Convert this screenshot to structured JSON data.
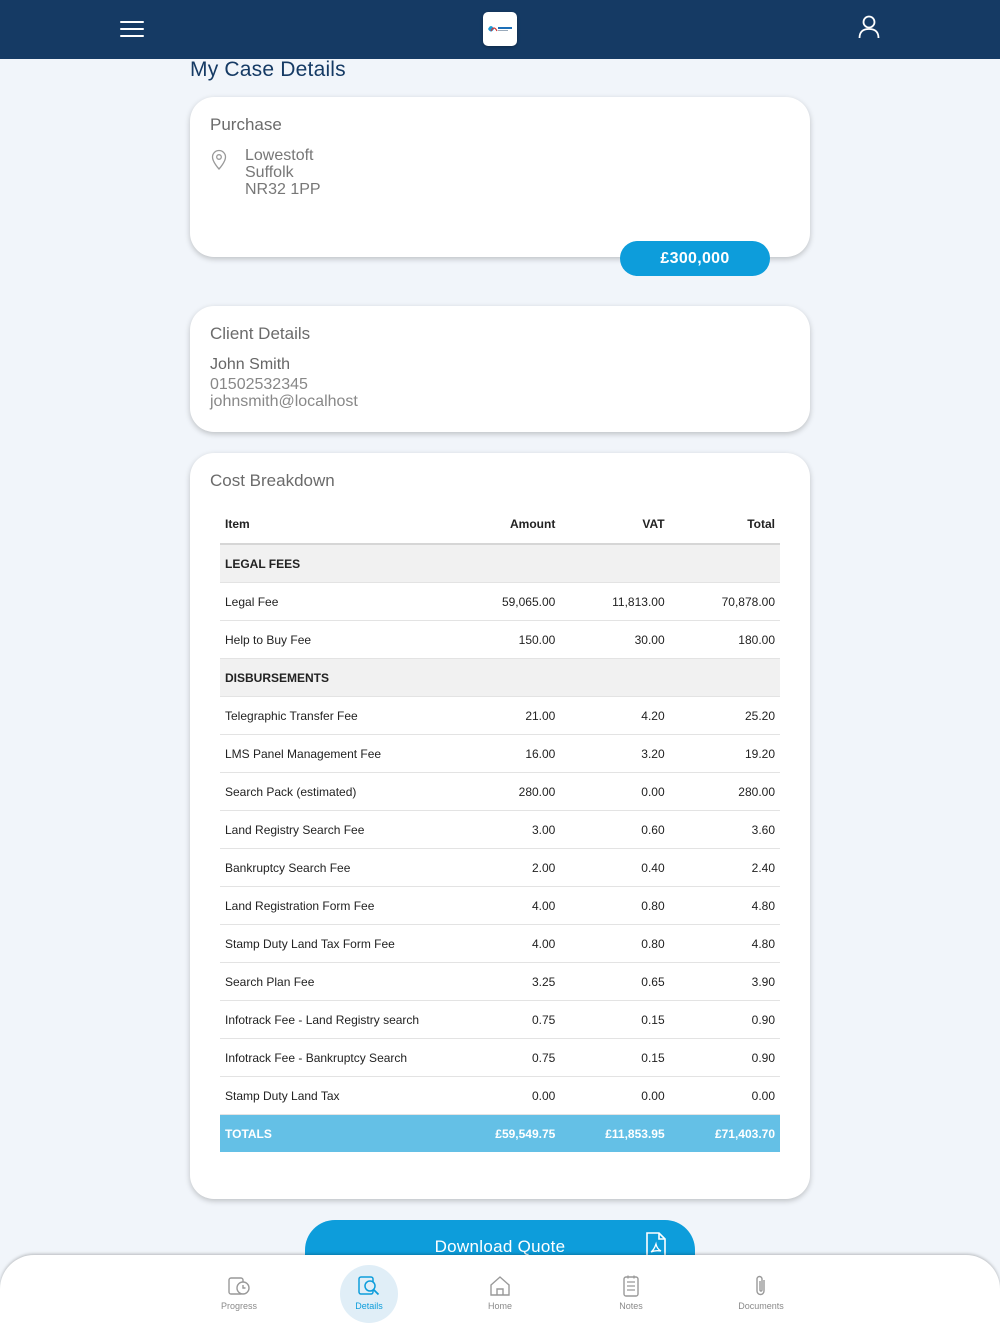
{
  "header": {
    "menu_icon": "hamburger-menu-icon",
    "logo": "firm-logo",
    "profile_icon": "user-profile-icon"
  },
  "page_title": "My Case Details",
  "purchase": {
    "title": "Purchase",
    "address": [
      "Lowestoft",
      "Suffolk",
      "NR32 1PP"
    ],
    "price": "£300,000"
  },
  "client": {
    "title": "Client Details",
    "name": "John Smith",
    "phone": "01502532345",
    "email": "johnsmith@localhost"
  },
  "cost_breakdown": {
    "title": "Cost Breakdown",
    "headers": [
      "Item",
      "Amount",
      "VAT",
      "Total"
    ],
    "rows": [
      {
        "type": "section",
        "label": "LEGAL FEES"
      },
      {
        "type": "item",
        "item": "Legal Fee",
        "amount": "59,065.00",
        "vat": "11,813.00",
        "total": "70,878.00"
      },
      {
        "type": "item",
        "item": "Help to Buy Fee",
        "amount": "150.00",
        "vat": "30.00",
        "total": "180.00"
      },
      {
        "type": "section",
        "label": "DISBURSEMENTS"
      },
      {
        "type": "item",
        "item": "Telegraphic Transfer Fee",
        "amount": "21.00",
        "vat": "4.20",
        "total": "25.20"
      },
      {
        "type": "item",
        "item": "LMS Panel Management Fee",
        "amount": "16.00",
        "vat": "3.20",
        "total": "19.20"
      },
      {
        "type": "item",
        "item": "Search Pack (estimated)",
        "amount": "280.00",
        "vat": "0.00",
        "total": "280.00"
      },
      {
        "type": "item",
        "item": "Land Registry Search Fee",
        "amount": "3.00",
        "vat": "0.60",
        "total": "3.60"
      },
      {
        "type": "item",
        "item": "Bankruptcy Search Fee",
        "amount": "2.00",
        "vat": "0.40",
        "total": "2.40"
      },
      {
        "type": "item",
        "item": "Land Registration Form Fee",
        "amount": "4.00",
        "vat": "0.80",
        "total": "4.80"
      },
      {
        "type": "item",
        "item": "Stamp Duty Land Tax Form Fee",
        "amount": "4.00",
        "vat": "0.80",
        "total": "4.80"
      },
      {
        "type": "item",
        "item": "Search Plan Fee",
        "amount": "3.25",
        "vat": "0.65",
        "total": "3.90"
      },
      {
        "type": "item",
        "item": "Infotrack Fee - Land Registry search",
        "amount": "0.75",
        "vat": "0.15",
        "total": "0.90"
      },
      {
        "type": "item",
        "item": "Infotrack Fee - Bankruptcy Search",
        "amount": "0.75",
        "vat": "0.15",
        "total": "0.90"
      },
      {
        "type": "item",
        "item": "Stamp Duty Land Tax",
        "amount": "0.00",
        "vat": "0.00",
        "total": "0.00"
      }
    ],
    "totals": {
      "label": "TOTALS",
      "amount": "£59,549.75",
      "vat": "£11,853.95",
      "total": "£71,403.70"
    }
  },
  "download_button": {
    "label": "Download Quote",
    "icon": "pdf-file-icon"
  },
  "colors": {
    "header": "#153a64",
    "accent": "#0d9ddb",
    "totals_row": "#64c0e6"
  },
  "bottom_nav": {
    "active": "Details",
    "items": [
      {
        "label": "Progress",
        "icon": "progress-clock-icon"
      },
      {
        "label": "Details",
        "icon": "details-search-icon"
      },
      {
        "label": "Home",
        "icon": "home-icon"
      },
      {
        "label": "Notes",
        "icon": "notes-icon"
      },
      {
        "label": "Documents",
        "icon": "paperclip-icon"
      }
    ]
  }
}
